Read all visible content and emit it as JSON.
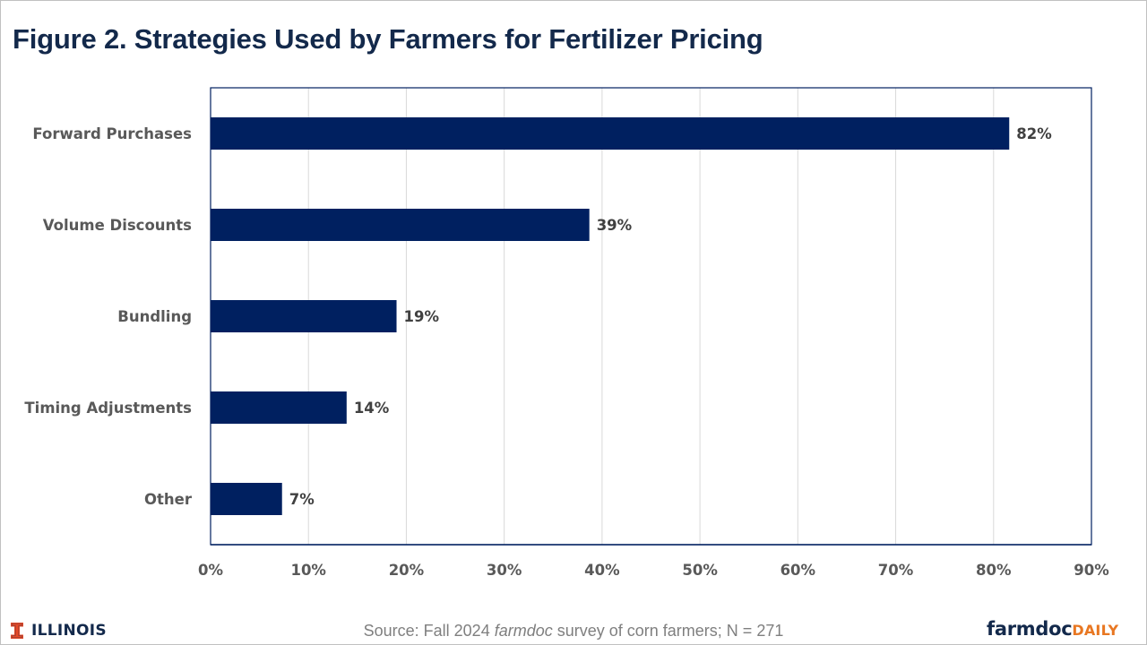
{
  "colors": {
    "title": "#13294b",
    "bar": "#002060",
    "axis": "#002060",
    "grid": "#d9d9d9",
    "illinois_orange": "#e84a27",
    "daily_orange": "#e87722"
  },
  "chart_data": {
    "type": "bar",
    "orientation": "horizontal",
    "title": "Figure 2. Strategies Used by Farmers for Fertilizer Pricing",
    "categories": [
      "Forward Purchases",
      "Volume Discounts",
      "Bundling",
      "Timing Adjustments",
      "Other"
    ],
    "values": [
      81.6,
      38.7,
      19.0,
      13.9,
      7.3
    ],
    "data_labels": [
      "82%",
      "39%",
      "19%",
      "14%",
      "7%"
    ],
    "xlabel": "",
    "ylabel": "",
    "xlim": [
      0,
      90
    ],
    "x_ticks": [
      0,
      10,
      20,
      30,
      40,
      50,
      60,
      70,
      80,
      90
    ],
    "x_tick_labels": [
      "0%",
      "10%",
      "20%",
      "30%",
      "40%",
      "50%",
      "60%",
      "70%",
      "80%",
      "90%"
    ],
    "grid": true,
    "legend": "none"
  },
  "footer": {
    "source_prefix": "Source: Fall 2024 ",
    "source_italic": "farmdoc",
    "source_suffix": " survey of corn farmers; N = 271",
    "left_logo": "ILLINOIS",
    "right_logo_part1": "farmdoc",
    "right_logo_part2": "DAILY"
  }
}
